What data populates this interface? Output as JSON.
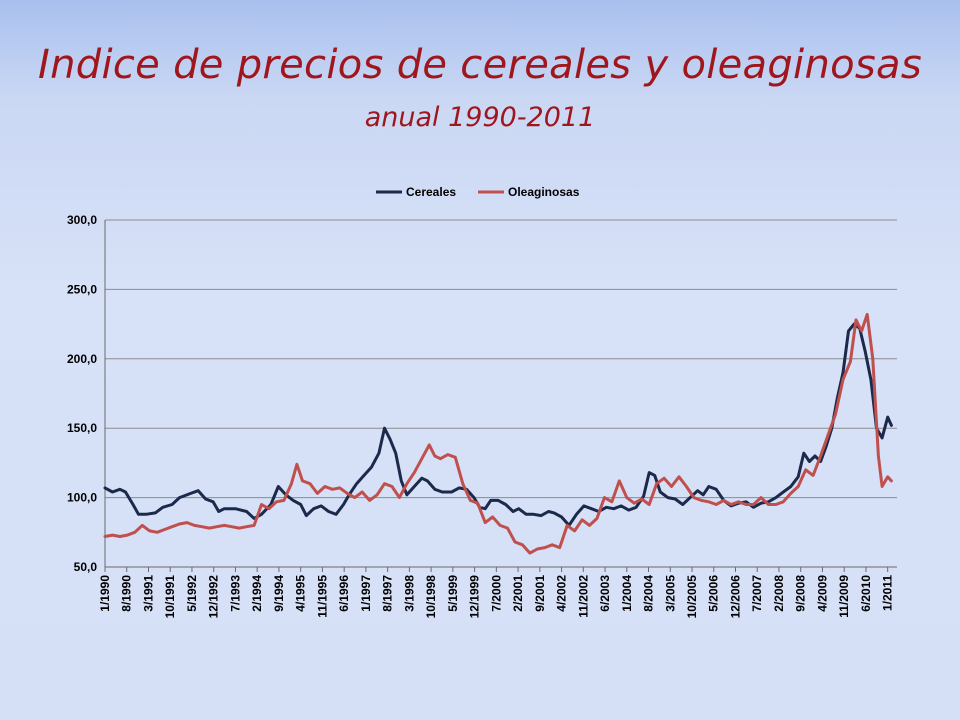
{
  "title": "Indice de precios de cereales y oleaginosas",
  "subtitle": "anual 1990-2011",
  "colors": {
    "background": "#d5dff6",
    "title": "#a0161d",
    "cereales": "#1b2a4a",
    "oleaginosas": "#c0504d"
  },
  "chart_data": {
    "type": "line",
    "title": "",
    "xlabel": "",
    "ylabel": "",
    "ylim": [
      50,
      300
    ],
    "yticks": [
      "300,0",
      "250,0",
      "200,0",
      "150,0",
      "100,0",
      "50,0"
    ],
    "yticks_values": [
      300,
      250,
      200,
      150,
      100,
      50
    ],
    "grid": true,
    "legend_position": "top-center",
    "x_tick_labels": [
      "1/1990",
      "8/1990",
      "3/1991",
      "10/1991",
      "5/1992",
      "12/1992",
      "7/1993",
      "2/1994",
      "9/1994",
      "4/1995",
      "11/1995",
      "6/1996",
      "1/1997",
      "8/1997",
      "3/1998",
      "10/1998",
      "5/1999",
      "12/1999",
      "7/2000",
      "2/2001",
      "9/2001",
      "4/2002",
      "11/2002",
      "6/2003",
      "1/2004",
      "8/2004",
      "3/2005",
      "10/2005",
      "5/2006",
      "12/2006",
      "7/2007",
      "2/2008",
      "9/2008",
      "4/2009",
      "11/2009",
      "6/2010",
      "1/2011"
    ],
    "x_tick_values": [
      1990.0,
      1990.583,
      1991.167,
      1991.75,
      1992.333,
      1992.917,
      1993.5,
      1994.083,
      1994.667,
      1995.25,
      1995.833,
      1996.417,
      1997.0,
      1997.583,
      1998.167,
      1998.75,
      1999.333,
      1999.917,
      2000.5,
      2001.083,
      2001.667,
      2002.25,
      2002.833,
      2003.417,
      2004.0,
      2004.583,
      2005.167,
      2005.75,
      2006.333,
      2006.917,
      2007.5,
      2008.083,
      2008.667,
      2009.25,
      2009.833,
      2010.417,
      2011.0
    ],
    "x_range": [
      1990.0,
      2011.25
    ],
    "series": [
      {
        "name": "Cereales",
        "color": "#1b2a4a",
        "points": [
          [
            1990.0,
            107
          ],
          [
            1990.2,
            104
          ],
          [
            1990.4,
            106
          ],
          [
            1990.55,
            104
          ],
          [
            1990.75,
            95
          ],
          [
            1990.9,
            88
          ],
          [
            1991.1,
            88
          ],
          [
            1991.35,
            89
          ],
          [
            1991.55,
            93
          ],
          [
            1991.8,
            95
          ],
          [
            1992.0,
            100
          ],
          [
            1992.3,
            103
          ],
          [
            1992.5,
            105
          ],
          [
            1992.7,
            99
          ],
          [
            1992.9,
            97
          ],
          [
            1993.05,
            90
          ],
          [
            1993.2,
            92
          ],
          [
            1993.5,
            92
          ],
          [
            1993.8,
            90
          ],
          [
            1994.0,
            85
          ],
          [
            1994.2,
            88
          ],
          [
            1994.45,
            95
          ],
          [
            1994.65,
            108
          ],
          [
            1994.85,
            102
          ],
          [
            1995.05,
            98
          ],
          [
            1995.25,
            95
          ],
          [
            1995.4,
            87
          ],
          [
            1995.6,
            92
          ],
          [
            1995.8,
            94
          ],
          [
            1996.0,
            90
          ],
          [
            1996.2,
            88
          ],
          [
            1996.4,
            95
          ],
          [
            1996.55,
            102
          ],
          [
            1996.75,
            110
          ],
          [
            1996.95,
            116
          ],
          [
            1997.15,
            122
          ],
          [
            1997.35,
            132
          ],
          [
            1997.5,
            150
          ],
          [
            1997.65,
            142
          ],
          [
            1997.8,
            132
          ],
          [
            1997.95,
            112
          ],
          [
            1998.1,
            102
          ],
          [
            1998.3,
            108
          ],
          [
            1998.5,
            114
          ],
          [
            1998.65,
            112
          ],
          [
            1998.85,
            106
          ],
          [
            1999.05,
            104
          ],
          [
            1999.3,
            104
          ],
          [
            1999.5,
            107
          ],
          [
            1999.7,
            106
          ],
          [
            1999.9,
            100
          ],
          [
            2000.05,
            93
          ],
          [
            2000.2,
            92
          ],
          [
            2000.35,
            98
          ],
          [
            2000.55,
            98
          ],
          [
            2000.75,
            95
          ],
          [
            2000.95,
            90
          ],
          [
            2001.1,
            92
          ],
          [
            2001.3,
            88
          ],
          [
            2001.5,
            88
          ],
          [
            2001.7,
            87
          ],
          [
            2001.9,
            90
          ],
          [
            2002.05,
            89
          ],
          [
            2002.25,
            86
          ],
          [
            2002.45,
            80
          ],
          [
            2002.65,
            88
          ],
          [
            2002.85,
            94
          ],
          [
            2003.05,
            92
          ],
          [
            2003.25,
            90
          ],
          [
            2003.45,
            93
          ],
          [
            2003.65,
            92
          ],
          [
            2003.85,
            94
          ],
          [
            2004.05,
            91
          ],
          [
            2004.25,
            93
          ],
          [
            2004.45,
            101
          ],
          [
            2004.6,
            118
          ],
          [
            2004.75,
            116
          ],
          [
            2004.9,
            104
          ],
          [
            2005.1,
            100
          ],
          [
            2005.3,
            99
          ],
          [
            2005.5,
            95
          ],
          [
            2005.7,
            100
          ],
          [
            2005.9,
            105
          ],
          [
            2006.05,
            102
          ],
          [
            2006.2,
            108
          ],
          [
            2006.4,
            106
          ],
          [
            2006.6,
            98
          ],
          [
            2006.8,
            94
          ],
          [
            2007.0,
            96
          ],
          [
            2007.2,
            97
          ],
          [
            2007.4,
            93
          ],
          [
            2007.6,
            96
          ],
          [
            2007.8,
            97
          ],
          [
            2008.0,
            100
          ],
          [
            2008.2,
            104
          ],
          [
            2008.4,
            108
          ],
          [
            2008.6,
            115
          ],
          [
            2008.75,
            132
          ],
          [
            2008.9,
            126
          ],
          [
            2009.05,
            130
          ],
          [
            2009.2,
            126
          ],
          [
            2009.35,
            137
          ],
          [
            2009.5,
            150
          ],
          [
            2009.65,
            172
          ],
          [
            2009.8,
            190
          ],
          [
            2009.95,
            220
          ],
          [
            2010.1,
            225
          ],
          [
            2010.25,
            222
          ],
          [
            2010.4,
            205
          ],
          [
            2010.55,
            185
          ],
          [
            2010.7,
            150
          ],
          [
            2010.85,
            143
          ],
          [
            2011.0,
            158
          ],
          [
            2011.1,
            152
          ]
        ]
      },
      {
        "name": "Oleaginosas",
        "color": "#c0504d",
        "points": [
          [
            1990.0,
            72
          ],
          [
            1990.2,
            73
          ],
          [
            1990.4,
            72
          ],
          [
            1990.6,
            73
          ],
          [
            1990.8,
            75
          ],
          [
            1991.0,
            80
          ],
          [
            1991.2,
            76
          ],
          [
            1991.4,
            75
          ],
          [
            1991.6,
            77
          ],
          [
            1991.8,
            79
          ],
          [
            1992.0,
            81
          ],
          [
            1992.2,
            82
          ],
          [
            1992.4,
            80
          ],
          [
            1992.6,
            79
          ],
          [
            1992.8,
            78
          ],
          [
            1993.0,
            79
          ],
          [
            1993.2,
            80
          ],
          [
            1993.4,
            79
          ],
          [
            1993.6,
            78
          ],
          [
            1993.8,
            79
          ],
          [
            1994.0,
            80
          ],
          [
            1994.2,
            95
          ],
          [
            1994.4,
            92
          ],
          [
            1994.6,
            97
          ],
          [
            1994.8,
            98
          ],
          [
            1995.0,
            110
          ],
          [
            1995.15,
            124
          ],
          [
            1995.3,
            112
          ],
          [
            1995.5,
            110
          ],
          [
            1995.7,
            103
          ],
          [
            1995.9,
            108
          ],
          [
            1996.1,
            106
          ],
          [
            1996.3,
            107
          ],
          [
            1996.5,
            103
          ],
          [
            1996.7,
            100
          ],
          [
            1996.9,
            104
          ],
          [
            1997.1,
            98
          ],
          [
            1997.3,
            102
          ],
          [
            1997.5,
            110
          ],
          [
            1997.7,
            108
          ],
          [
            1997.9,
            100
          ],
          [
            1998.1,
            110
          ],
          [
            1998.3,
            118
          ],
          [
            1998.5,
            128
          ],
          [
            1998.7,
            138
          ],
          [
            1998.85,
            130
          ],
          [
            1999.0,
            128
          ],
          [
            1999.2,
            131
          ],
          [
            1999.4,
            129
          ],
          [
            1999.6,
            110
          ],
          [
            1999.8,
            98
          ],
          [
            2000.0,
            96
          ],
          [
            2000.2,
            82
          ],
          [
            2000.4,
            86
          ],
          [
            2000.6,
            80
          ],
          [
            2000.8,
            78
          ],
          [
            2001.0,
            68
          ],
          [
            2001.2,
            66
          ],
          [
            2001.4,
            60
          ],
          [
            2001.6,
            63
          ],
          [
            2001.8,
            64
          ],
          [
            2002.0,
            66
          ],
          [
            2002.2,
            64
          ],
          [
            2002.4,
            80
          ],
          [
            2002.6,
            76
          ],
          [
            2002.8,
            84
          ],
          [
            2003.0,
            80
          ],
          [
            2003.2,
            85
          ],
          [
            2003.4,
            100
          ],
          [
            2003.6,
            97
          ],
          [
            2003.8,
            112
          ],
          [
            2004.0,
            100
          ],
          [
            2004.2,
            96
          ],
          [
            2004.4,
            99
          ],
          [
            2004.6,
            95
          ],
          [
            2004.8,
            110
          ],
          [
            2005.0,
            114
          ],
          [
            2005.2,
            108
          ],
          [
            2005.4,
            115
          ],
          [
            2005.6,
            108
          ],
          [
            2005.8,
            100
          ],
          [
            2006.0,
            98
          ],
          [
            2006.2,
            97
          ],
          [
            2006.4,
            95
          ],
          [
            2006.6,
            98
          ],
          [
            2006.8,
            95
          ],
          [
            2007.0,
            97
          ],
          [
            2007.2,
            95
          ],
          [
            2007.4,
            95
          ],
          [
            2007.6,
            100
          ],
          [
            2007.8,
            95
          ],
          [
            2008.0,
            95
          ],
          [
            2008.2,
            97
          ],
          [
            2008.4,
            103
          ],
          [
            2008.6,
            108
          ],
          [
            2008.8,
            120
          ],
          [
            2009.0,
            116
          ],
          [
            2009.2,
            130
          ],
          [
            2009.4,
            145
          ],
          [
            2009.6,
            160
          ],
          [
            2009.8,
            185
          ],
          [
            2010.0,
            198
          ],
          [
            2010.15,
            228
          ],
          [
            2010.3,
            220
          ],
          [
            2010.45,
            232
          ],
          [
            2010.6,
            200
          ],
          [
            2010.75,
            130
          ],
          [
            2010.85,
            108
          ],
          [
            2011.0,
            115
          ],
          [
            2011.1,
            112
          ]
        ]
      }
    ]
  }
}
